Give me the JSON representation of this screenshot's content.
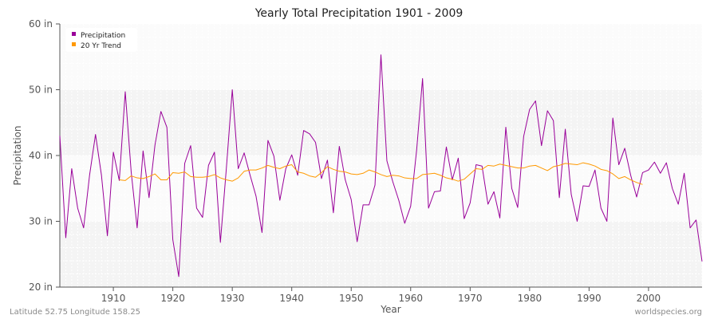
{
  "chart_data": {
    "type": "line",
    "title": "Yearly Total Precipitation 1901 - 2009",
    "xlabel": "Year",
    "ylabel": "Precipitation",
    "xlim": [
      1901,
      2009
    ],
    "ylim": [
      20,
      60
    ],
    "x_ticks": [
      {
        "value": 1910,
        "label": "1910"
      },
      {
        "value": 1920,
        "label": "1920"
      },
      {
        "value": 1930,
        "label": "1930"
      },
      {
        "value": 1940,
        "label": "1940"
      },
      {
        "value": 1950,
        "label": "1950"
      },
      {
        "value": 1960,
        "label": "1960"
      },
      {
        "value": 1970,
        "label": "1970"
      },
      {
        "value": 1980,
        "label": "1980"
      },
      {
        "value": 1990,
        "label": "1990"
      },
      {
        "value": 2000,
        "label": "2000"
      }
    ],
    "y_ticks": [
      {
        "value": 20,
        "label": "20 in"
      },
      {
        "value": 30,
        "label": "30 in"
      },
      {
        "value": 40,
        "label": "40 in"
      },
      {
        "value": 50,
        "label": "50 in"
      },
      {
        "value": 60,
        "label": "60 in"
      }
    ],
    "grid": true,
    "legend_position": "top-left",
    "series": [
      {
        "name": "Precipitation",
        "color": "#990099",
        "x_start": 1901,
        "values": [
          43.0,
          27.5,
          38.0,
          32.0,
          29.0,
          37.0,
          43.2,
          37.0,
          27.8,
          40.5,
          36.2,
          49.7,
          37.5,
          29.0,
          40.7,
          33.6,
          41.6,
          46.7,
          44.3,
          27.2,
          21.6,
          38.8,
          41.5,
          32.0,
          30.6,
          38.5,
          40.5,
          26.8,
          38.0,
          50.0,
          38.0,
          40.4,
          37.0,
          33.8,
          28.3,
          42.3,
          39.9,
          33.2,
          38.0,
          40.1,
          37.0,
          43.8,
          43.3,
          42.0,
          36.5,
          39.3,
          31.3,
          41.4,
          36.3,
          33.3,
          26.9,
          32.5,
          32.5,
          35.5,
          55.3,
          39.2,
          36.0,
          33.2,
          29.7,
          32.3,
          40.8,
          51.7,
          32.0,
          34.5,
          34.6,
          41.3,
          36.3,
          39.6,
          30.4,
          32.8,
          38.6,
          38.4,
          32.6,
          34.5,
          30.5,
          44.3,
          35.0,
          32.1,
          42.9,
          47.0,
          48.3,
          41.5,
          46.8,
          45.3,
          33.6,
          44.0,
          34.1,
          30.0,
          35.4,
          35.3,
          37.8,
          32.0,
          30.0,
          45.7,
          38.6,
          41.1,
          37.0,
          33.7,
          37.4,
          37.8,
          39.0,
          37.3,
          38.9,
          35.0,
          32.6,
          37.3,
          29.0,
          30.2,
          23.9
        ]
      },
      {
        "name": "20 Yr Trend",
        "color": "#ff9900",
        "x_start": 1911,
        "values": [
          36.3,
          36.2,
          36.9,
          36.6,
          36.5,
          36.8,
          37.2,
          36.3,
          36.3,
          37.4,
          37.3,
          37.5,
          36.8,
          36.7,
          36.7,
          36.8,
          37.1,
          36.6,
          36.3,
          36.1,
          36.6,
          37.6,
          37.8,
          37.8,
          38.1,
          38.5,
          38.2,
          38.0,
          38.4,
          38.6,
          37.5,
          37.3,
          36.9,
          36.7,
          37.4,
          38.3,
          37.9,
          37.6,
          37.5,
          37.2,
          37.1,
          37.3,
          37.8,
          37.5,
          37.1,
          36.8,
          37.0,
          36.9,
          36.6,
          36.5,
          36.5,
          37.1,
          37.2,
          37.3,
          37.0,
          36.6,
          36.4,
          36.1,
          36.4,
          37.2,
          38.0,
          37.9,
          38.5,
          38.4,
          38.7,
          38.5,
          38.3,
          38.1,
          38.1,
          38.4,
          38.5,
          38.1,
          37.7,
          38.3,
          38.5,
          38.8,
          38.7,
          38.6,
          38.9,
          38.7,
          38.4,
          37.9,
          37.7,
          37.2,
          36.5,
          36.8,
          36.3,
          35.9,
          35.6
        ]
      }
    ]
  },
  "footer": {
    "location": "Latitude 52.75 Longitude 158.25",
    "credit": "worldspecies.org"
  }
}
